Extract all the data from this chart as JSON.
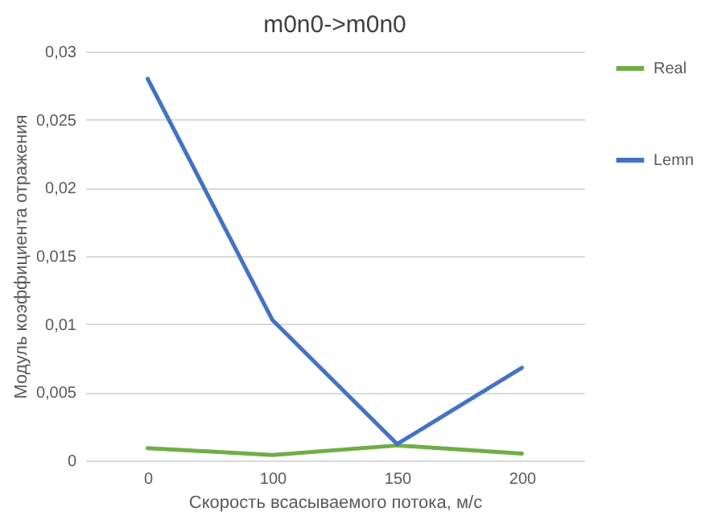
{
  "chart_data": {
    "type": "line",
    "title": "m0n0->m0n0",
    "xlabel": "Скорость всасываемого потока, м/с",
    "ylabel": "Модуль коэффициента отражения",
    "categories": [
      "0",
      "100",
      "150",
      "200"
    ],
    "series": [
      {
        "name": "Real",
        "color": "#70ad47",
        "values": [
          0.0009,
          0.0004,
          0.0011,
          0.0005
        ]
      },
      {
        "name": "Lemn",
        "color": "#4472c4",
        "values": [
          0.028,
          0.0103,
          0.0012,
          0.0068
        ]
      }
    ],
    "ylim": [
      0,
      0.03
    ],
    "yticks": [
      0,
      {
        "value": 0.005,
        "label": "0,005"
      },
      {
        "value": 0.01,
        "label": "0,01"
      },
      {
        "value": 0.015,
        "label": "0,015"
      },
      {
        "value": 0.02,
        "label": "0,02"
      },
      {
        "value": 0.025,
        "label": "0,025"
      },
      {
        "value": 0.03,
        "label": "0,03"
      }
    ],
    "grid": "y",
    "legend": "right",
    "marker": "none",
    "line_style": "solid"
  }
}
